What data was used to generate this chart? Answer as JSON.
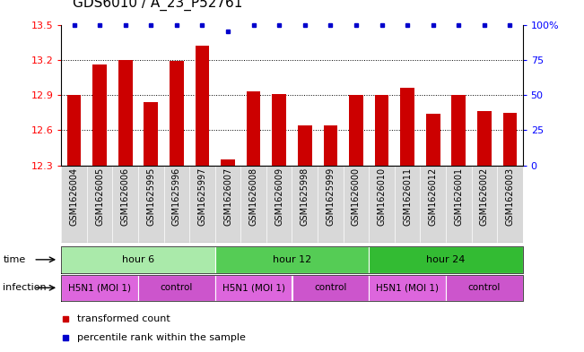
{
  "title": "GDS6010 / A_23_P52761",
  "samples": [
    "GSM1626004",
    "GSM1626005",
    "GSM1626006",
    "GSM1625995",
    "GSM1625996",
    "GSM1625997",
    "GSM1626007",
    "GSM1626008",
    "GSM1626009",
    "GSM1625998",
    "GSM1625999",
    "GSM1626000",
    "GSM1626010",
    "GSM1626011",
    "GSM1626012",
    "GSM1626001",
    "GSM1626002",
    "GSM1626003"
  ],
  "bar_values": [
    12.9,
    13.16,
    13.2,
    12.84,
    13.19,
    13.32,
    12.35,
    12.93,
    12.91,
    12.64,
    12.64,
    12.9,
    12.9,
    12.96,
    12.74,
    12.9,
    12.76,
    12.75
  ],
  "percentile_values": [
    100,
    100,
    100,
    100,
    100,
    100,
    95,
    100,
    100,
    100,
    100,
    100,
    100,
    100,
    100,
    100,
    100,
    100
  ],
  "ylim_left": [
    12.3,
    13.5
  ],
  "ylim_right": [
    0,
    100
  ],
  "yticks_left": [
    12.3,
    12.6,
    12.9,
    13.2,
    13.5
  ],
  "yticks_right": [
    0,
    25,
    50,
    75,
    100
  ],
  "bar_color": "#cc0000",
  "dot_color": "#0000cc",
  "background_color": "#ffffff",
  "time_groups": [
    {
      "label": "hour 6",
      "start": 0,
      "end": 6,
      "color": "#aaeaaa"
    },
    {
      "label": "hour 12",
      "start": 6,
      "end": 12,
      "color": "#55cc55"
    },
    {
      "label": "hour 24",
      "start": 12,
      "end": 18,
      "color": "#33bb33"
    }
  ],
  "infection_groups": [
    {
      "label": "H5N1 (MOI 1)",
      "start": 0,
      "end": 3,
      "color": "#dd66dd"
    },
    {
      "label": "control",
      "start": 3,
      "end": 6,
      "color": "#cc55cc"
    },
    {
      "label": "H5N1 (MOI 1)",
      "start": 6,
      "end": 9,
      "color": "#dd66dd"
    },
    {
      "label": "control",
      "start": 9,
      "end": 12,
      "color": "#cc55cc"
    },
    {
      "label": "H5N1 (MOI 1)",
      "start": 12,
      "end": 15,
      "color": "#dd66dd"
    },
    {
      "label": "control",
      "start": 15,
      "end": 18,
      "color": "#cc55cc"
    }
  ],
  "label_fontsize": 7,
  "tick_fontsize": 8,
  "row_label_fontsize": 8,
  "title_fontsize": 11
}
